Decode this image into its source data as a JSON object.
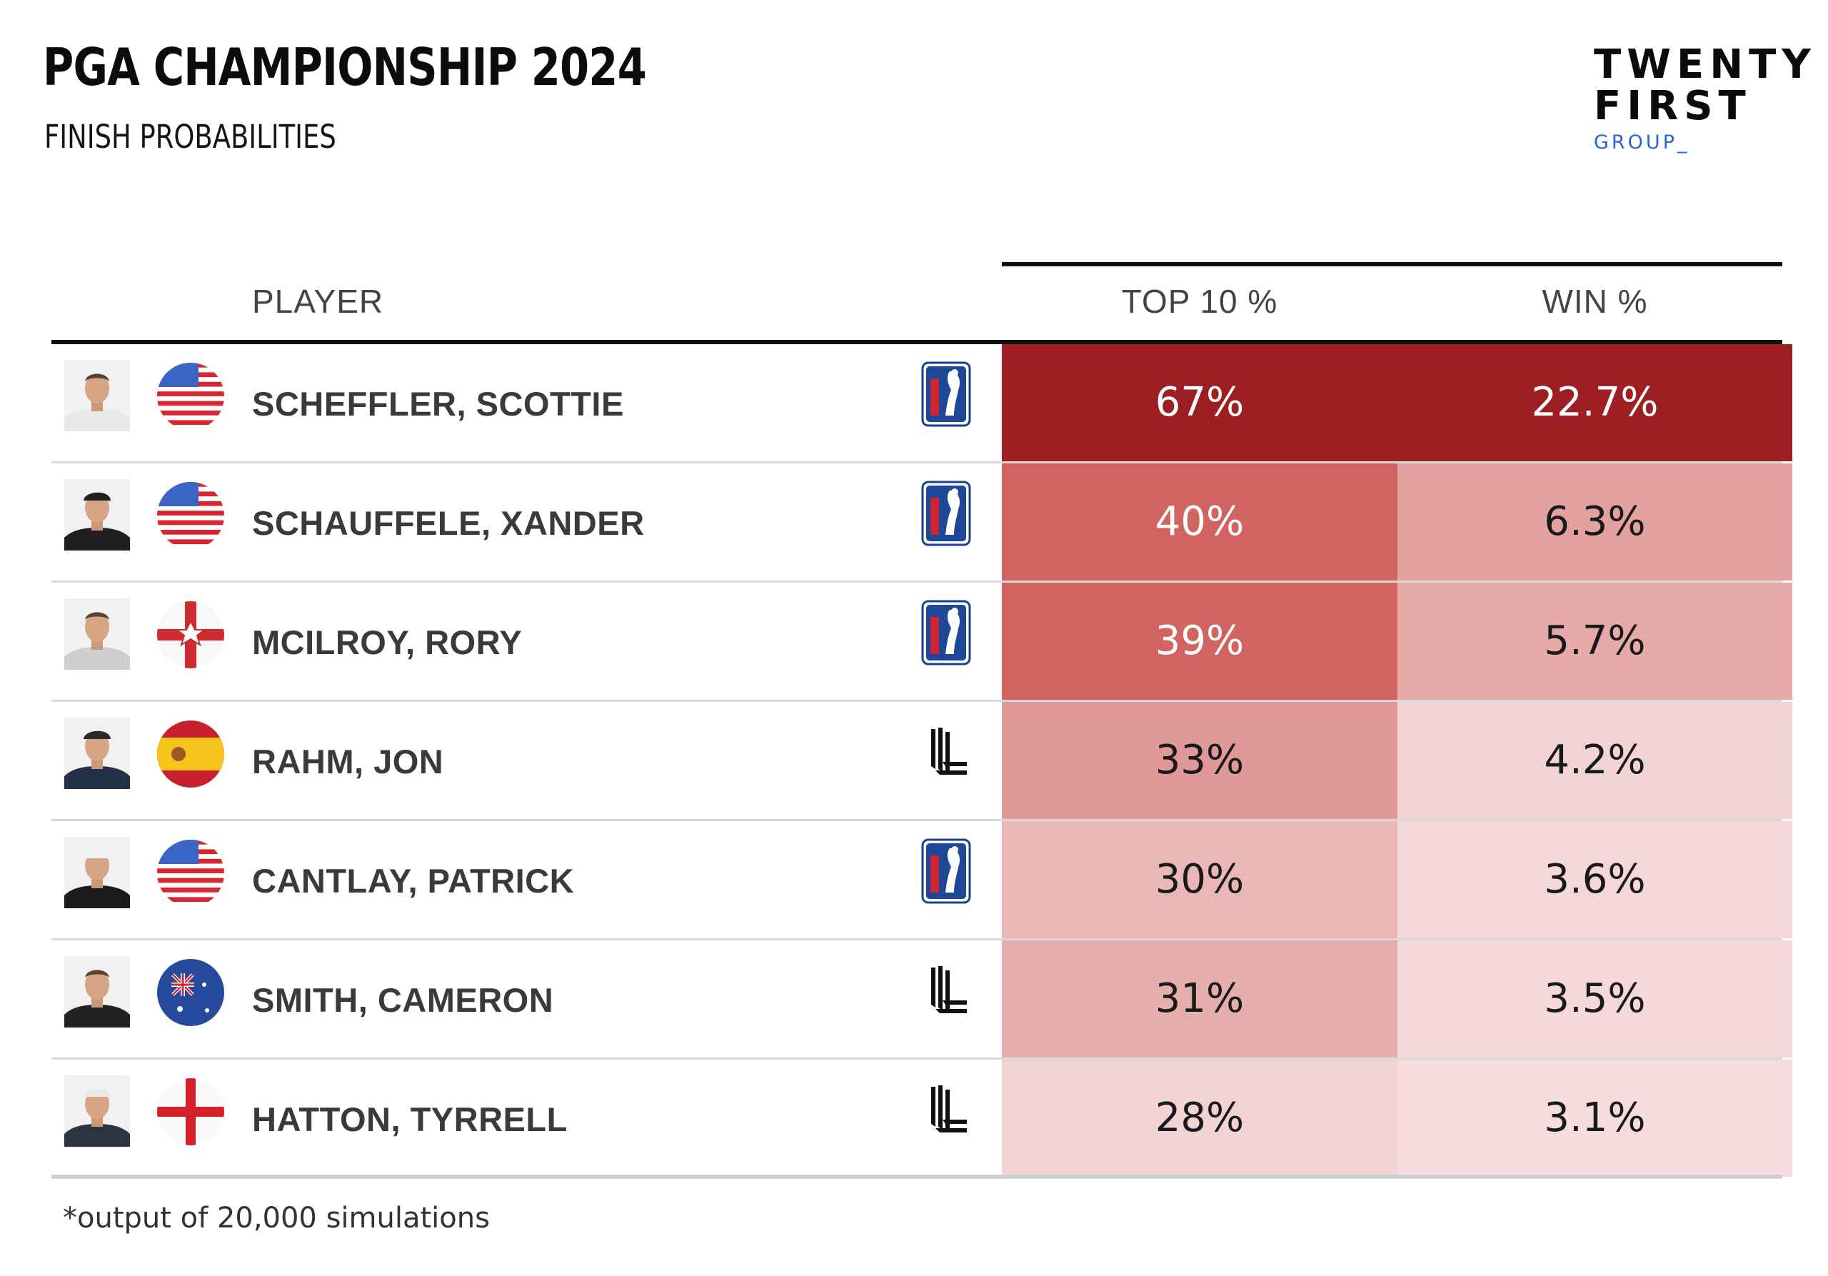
{
  "header": {
    "title": "PGA CHAMPIONSHIP 2024",
    "subtitle": "FINISH PROBABILITIES"
  },
  "logo": {
    "line1": "TWENTY",
    "line2": "FIRST",
    "line3": "GROUP_"
  },
  "columns": {
    "player": "PLAYER",
    "top10": "TOP 10 %",
    "win": "WIN %"
  },
  "footnote": "*output of 20,000 simulations",
  "chart_data": {
    "type": "table",
    "title": "PGA CHAMPIONSHIP 2024",
    "subtitle": "FINISH PROBABILITIES",
    "columns": [
      "PLAYER",
      "TOP 10 %",
      "WIN %"
    ],
    "rows": [
      {
        "player": "SCHEFFLER, SCOTTIE",
        "flag": "usa",
        "tour": "pga-tour",
        "top10": "67%",
        "win": "22.7%",
        "top10_value": 67,
        "win_value": 22.7
      },
      {
        "player": "SCHAUFFELE, XANDER",
        "flag": "usa",
        "tour": "pga-tour",
        "top10": "40%",
        "win": "6.3%",
        "top10_value": 40,
        "win_value": 6.3
      },
      {
        "player": "MCILROY, RORY",
        "flag": "northern-ireland",
        "tour": "pga-tour",
        "top10": "39%",
        "win": "5.7%",
        "top10_value": 39,
        "win_value": 5.7
      },
      {
        "player": "RAHM, JON",
        "flag": "spain",
        "tour": "liv-golf",
        "top10": "33%",
        "win": "4.2%",
        "top10_value": 33,
        "win_value": 4.2
      },
      {
        "player": "CANTLAY, PATRICK",
        "flag": "usa",
        "tour": "pga-tour",
        "top10": "30%",
        "win": "3.6%",
        "top10_value": 30,
        "win_value": 3.6
      },
      {
        "player": "SMITH, CAMERON",
        "flag": "australia",
        "tour": "liv-golf",
        "top10": "31%",
        "win": "3.5%",
        "top10_value": 31,
        "win_value": 3.5
      },
      {
        "player": "HATTON, TYRRELL",
        "flag": "england",
        "tour": "liv-golf",
        "top10": "28%",
        "win": "3.1%",
        "top10_value": 28,
        "win_value": 3.1
      }
    ],
    "colors": {
      "level1": "#9e1f23",
      "level2": "#d16461",
      "level3": "#d86e6b",
      "level4": "#e3a19f",
      "level5": "#ebbbba",
      "level6": "#f3d4d5"
    },
    "cell_colors": [
      {
        "top10": "#9e1f23",
        "win": "#9e1f23"
      },
      {
        "top10": "#d16461",
        "win": "#e3a19f"
      },
      {
        "top10": "#d16461",
        "win": "#e6aaa9"
      },
      {
        "top10": "#e09998",
        "win": "#f3d4d5"
      },
      {
        "top10": "#e8b7b6",
        "win": "#f4d7d8"
      },
      {
        "top10": "#e5aeac",
        "win": "#f5d9da"
      },
      {
        "top10": "#f3d2d3",
        "win": "#f6dcdd"
      }
    ]
  }
}
